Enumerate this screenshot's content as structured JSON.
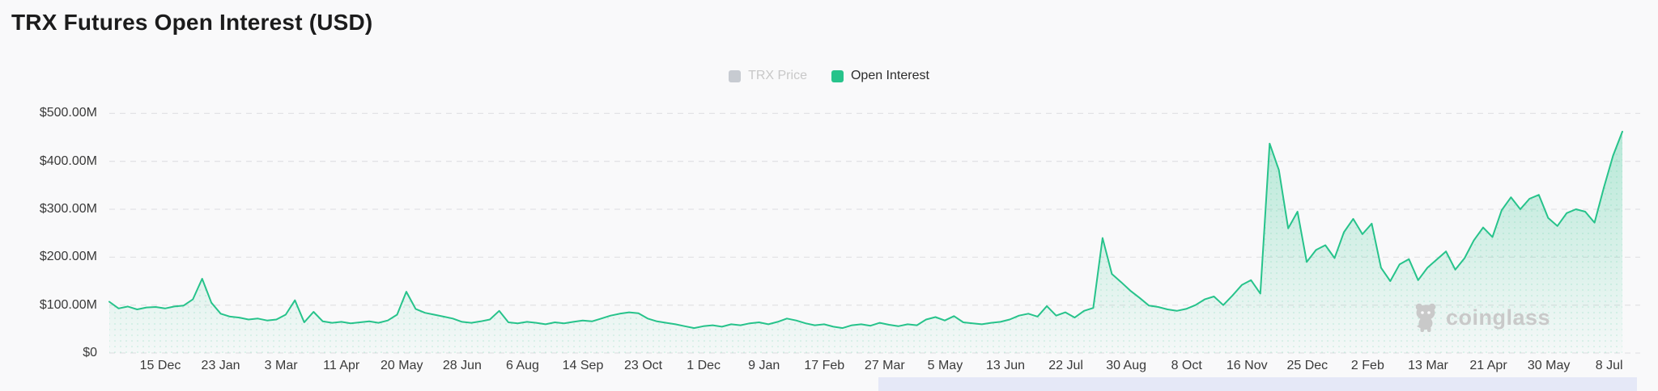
{
  "page": {
    "title": "TRX Futures Open Interest (USD)"
  },
  "legend": {
    "items": [
      {
        "label": "TRX Price",
        "swatch_color": "#c7cbd1",
        "disabled": true
      },
      {
        "label": "Open Interest",
        "swatch_color": "#27c38b",
        "disabled": false
      }
    ]
  },
  "watermark": {
    "label": "coinglass",
    "color": "#c9c9c9"
  },
  "colors": {
    "background": "#f9f9fa",
    "line": "#27c38b",
    "gridline": "#e3e3e6",
    "axis_text": "#3a3a3a",
    "title_text": "#1c1c1c",
    "disabled_legend": "#c8c8c8",
    "range_strip": "#e5e8f7"
  },
  "chart_data": {
    "type": "area",
    "title": "TRX Futures Open Interest (USD)",
    "ylabel": "Open Interest (USD)",
    "ylim_usd_millions": [
      0,
      500
    ],
    "grid": "horizontal-dashed",
    "legend_position": "top-center",
    "y_ticks": [
      {
        "label": "$500.00M",
        "value": 500
      },
      {
        "label": "$400.00M",
        "value": 400
      },
      {
        "label": "$300.00M",
        "value": 300
      },
      {
        "label": "$200.00M",
        "value": 200
      },
      {
        "label": "$100.00M",
        "value": 100
      },
      {
        "label": "$0",
        "value": 0
      }
    ],
    "x_tick_labels": [
      "15 Dec",
      "23 Jan",
      "3 Mar",
      "11 Apr",
      "20 May",
      "28 Jun",
      "6 Aug",
      "14 Sep",
      "23 Oct",
      "1 Dec",
      "9 Jan",
      "17 Feb",
      "27 Mar",
      "5 May",
      "13 Jun",
      "22 Jul",
      "30 Aug",
      "8 Oct",
      "16 Nov",
      "25 Dec",
      "2 Feb",
      "13 Mar",
      "21 Apr",
      "30 May",
      "8 Jul"
    ],
    "series": [
      {
        "name": "Open Interest",
        "color": "#27c38b",
        "unit": "USD millions",
        "x_start_date": "2022-11-12",
        "x_step_days": 6,
        "values": [
          107,
          93,
          97,
          91,
          95,
          96,
          93,
          97,
          99,
          112,
          155,
          105,
          82,
          76,
          74,
          70,
          72,
          68,
          70,
          80,
          110,
          64,
          86,
          66,
          63,
          65,
          62,
          64,
          66,
          63,
          68,
          80,
          128,
          92,
          84,
          80,
          76,
          72,
          65,
          63,
          66,
          70,
          88,
          64,
          62,
          65,
          63,
          60,
          64,
          62,
          65,
          68,
          66,
          72,
          78,
          82,
          85,
          83,
          72,
          66,
          63,
          60,
          56,
          52,
          56,
          58,
          55,
          60,
          58,
          62,
          64,
          60,
          65,
          72,
          68,
          62,
          58,
          60,
          55,
          52,
          58,
          60,
          57,
          63,
          59,
          56,
          60,
          58,
          70,
          75,
          68,
          77,
          64,
          62,
          60,
          63,
          65,
          70,
          78,
          82,
          76,
          98,
          78,
          85,
          74,
          88,
          94,
          240,
          165,
          148,
          130,
          115,
          99,
          96,
          91,
          88,
          92,
          100,
          112,
          118,
          100,
          120,
          142,
          152,
          124,
          437,
          382,
          260,
          295,
          190,
          215,
          225,
          198,
          252,
          280,
          248,
          270,
          178,
          150,
          185,
          196,
          152,
          178,
          195,
          212,
          174,
          198,
          235,
          262,
          242,
          298,
          325,
          300,
          322,
          330,
          282,
          265,
          292,
          300,
          295,
          272,
          345,
          412,
          462
        ]
      },
      {
        "name": "TRX Price",
        "color": "#c7cbd1",
        "hidden": true,
        "values": []
      }
    ]
  }
}
